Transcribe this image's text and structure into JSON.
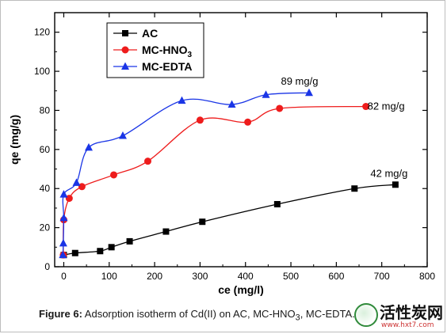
{
  "chart_data": {
    "type": "line",
    "title": "",
    "xlabel": "ce (mg/l)",
    "ylabel": "qe (mg/g)",
    "xlim": [
      -20,
      800
    ],
    "ylim": [
      0,
      130
    ],
    "x_ticks": [
      0,
      100,
      200,
      300,
      400,
      500,
      600,
      700,
      800
    ],
    "y_ticks": [
      0,
      20,
      40,
      60,
      80,
      100,
      120
    ],
    "grid": false,
    "legend_position": "top-left",
    "series": [
      {
        "name": "AC",
        "color": "#000000",
        "marker": "square",
        "x": [
          0,
          25,
          80,
          105,
          145,
          225,
          305,
          470,
          640,
          730
        ],
        "y": [
          6,
          7,
          8,
          10,
          13,
          18,
          23,
          32,
          40,
          42
        ],
        "end_label": "42 mg/g"
      },
      {
        "name": "MC-HNO",
        "name_sub": "3",
        "color": "#ee1c1c",
        "marker": "circle",
        "x": [
          -1,
          0,
          12,
          40,
          110,
          185,
          300,
          405,
          475,
          665
        ],
        "y": [
          6,
          24,
          35,
          41,
          47,
          54,
          75,
          74,
          81,
          82
        ],
        "end_label": "82 mg/g"
      },
      {
        "name": "MC-EDTA",
        "color": "#1a35e6",
        "marker": "triangle",
        "x": [
          -2,
          -1,
          0,
          0,
          28,
          55,
          130,
          260,
          370,
          445,
          540
        ],
        "y": [
          6,
          12,
          25,
          37,
          43,
          61,
          67,
          85,
          83,
          88,
          89
        ],
        "end_label": "89 mg/g"
      }
    ]
  },
  "caption": {
    "figure_label": "Figure 6:",
    "text_before_sub": " Adsorption isotherm of Cd(II) on AC, MC-HNO",
    "sub": "3",
    "text_after_sub": ", MC-EDTA."
  },
  "watermark": {
    "title": "活性炭网",
    "url": "www.hxt7.com"
  }
}
